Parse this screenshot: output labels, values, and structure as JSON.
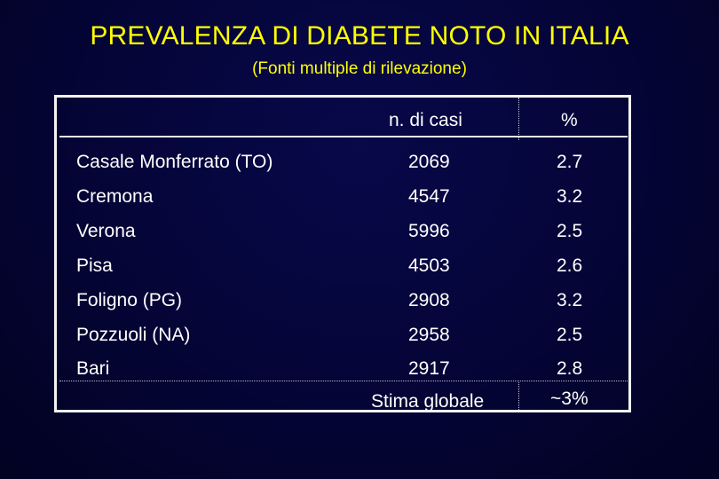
{
  "slide": {
    "title": "PREVALENZA DI DIABETE NOTO IN ITALIA",
    "subtitle": "(Fonti multiple di rilevazione)"
  },
  "table": {
    "headers": [
      "",
      "n. di casi",
      "%"
    ],
    "rows": [
      {
        "location": "Casale Monferrato (TO)",
        "cases": "2069",
        "percent": "2.7"
      },
      {
        "location": "Cremona",
        "cases": "4547",
        "percent": "3.2"
      },
      {
        "location": "Verona",
        "cases": "5996",
        "percent": "2.5"
      },
      {
        "location": "Pisa",
        "cases": "4503",
        "percent": "2.6"
      },
      {
        "location": "Foligno (PG)",
        "cases": "2908",
        "percent": "3.2"
      },
      {
        "location": "Pozzuoli (NA)",
        "cases": "2958",
        "percent": "2.5"
      },
      {
        "location": "Bari",
        "cases": "2917",
        "percent": "2.8"
      }
    ],
    "summary": {
      "label": "Stima globale",
      "value": "~3%"
    }
  },
  "colors": {
    "title": "#ffff00",
    "background": "#03032a",
    "text": "#ffffff",
    "border": "#f2f2f2"
  }
}
